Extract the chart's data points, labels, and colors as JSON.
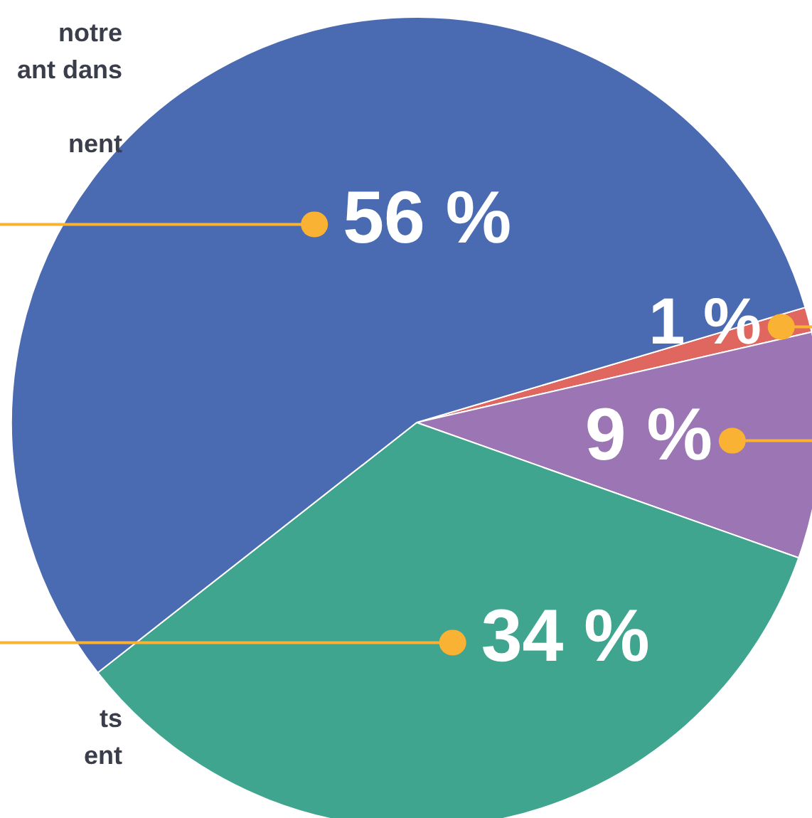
{
  "chart_data": {
    "type": "pie",
    "categories": [
      null,
      null,
      null,
      null
    ],
    "values": [
      1,
      9,
      34,
      56
    ],
    "colors": [
      "#e0675f",
      "#9b75b4",
      "#3fa58f",
      "#4a6bb2"
    ],
    "value_labels": [
      "1 %",
      "9 %",
      "34 %",
      "56 %"
    ],
    "annotations": [
      "notre\nant dans\n\nnent",
      "ts\nent"
    ]
  }
}
